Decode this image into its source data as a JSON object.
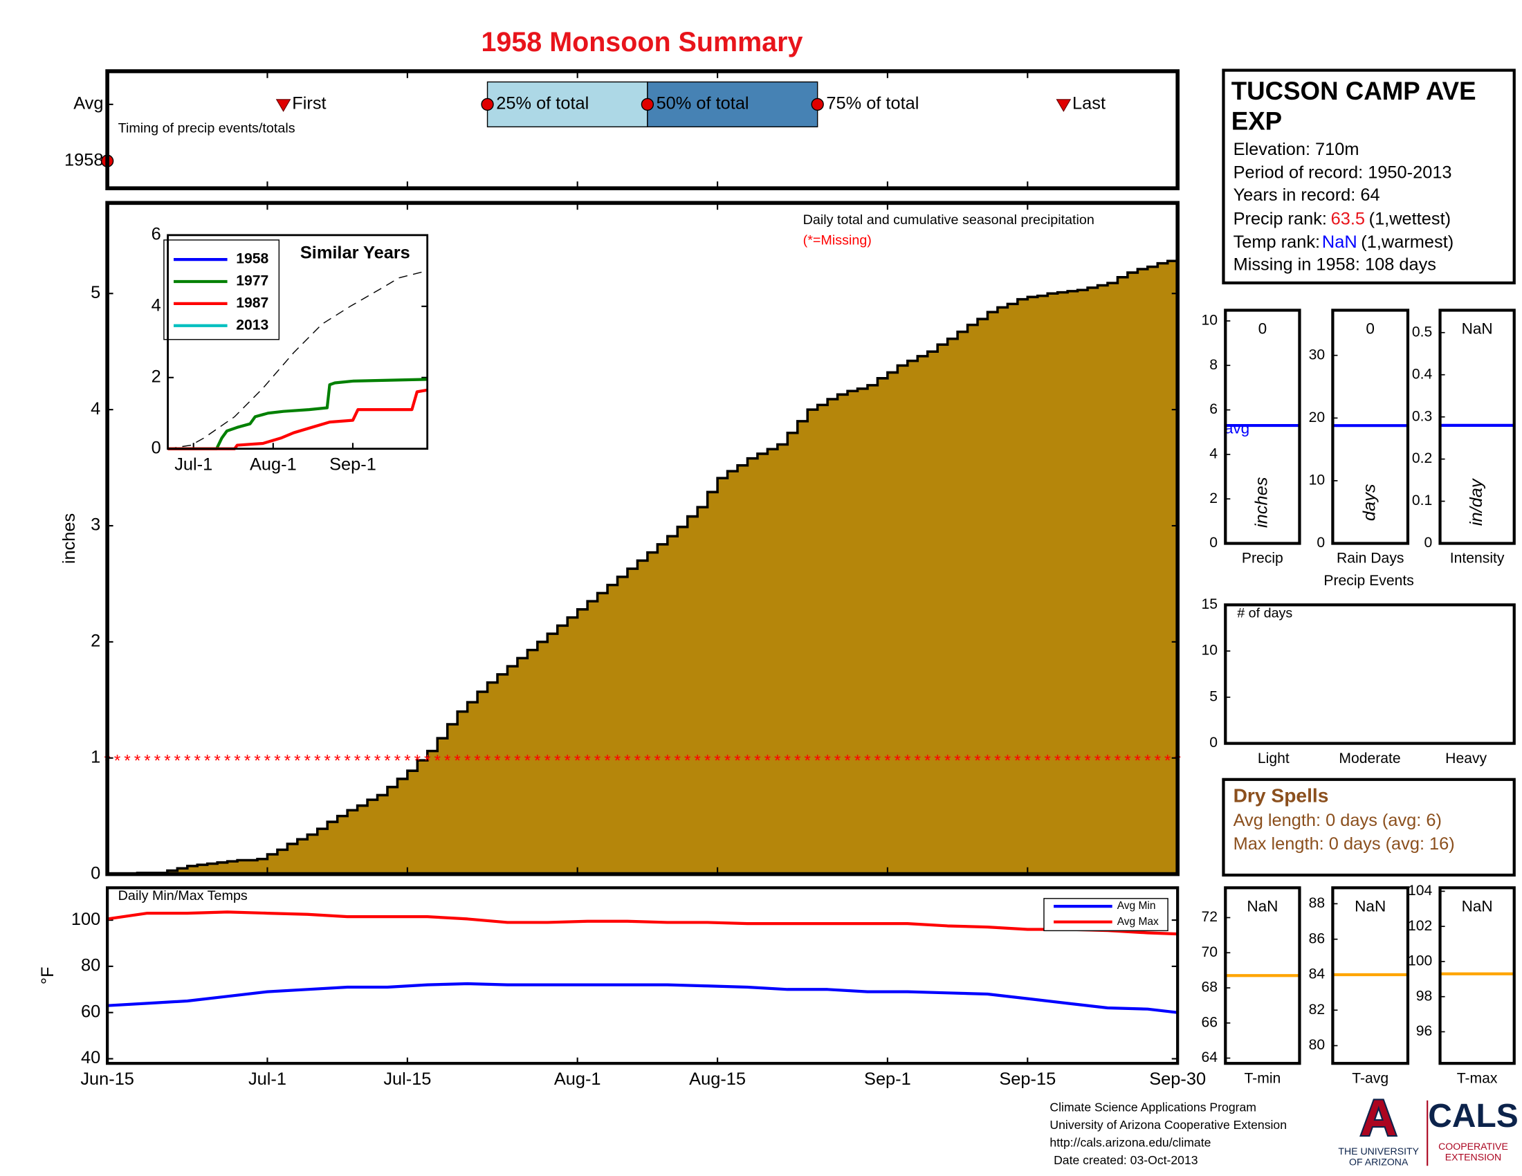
{
  "title": "1958 Monsoon Summary",
  "station": {
    "name": "TUCSON CAMP AVE EXP",
    "lines": [
      "Elevation: 710m",
      "Period of record: 1950-2013",
      "Years in record: 64"
    ],
    "precip_rank_label": "Precip rank:",
    "precip_rank": 63.5,
    "precip_rank_note": "(1,wettest)",
    "temp_rank_label": "Temp rank:",
    "temp_rank": "NaN",
    "temp_rank_note": "(1,warmest)",
    "missing": "Missing in 1958: 108 days"
  },
  "dry_spells": {
    "title": "Dry Spells",
    "lines": [
      "Avg length: 0 days (avg: 6)",
      "Max length: 0 days (avg: 16)"
    ]
  },
  "panel_captions": {
    "precip_events": "Precip Events"
  },
  "footer": {
    "lines": [
      "Climate Science Applications Program",
      "University of Arizona Cooperative Extension",
      "http://cals.arizona.edu/climate",
      "Date created: 03-Oct-2013"
    ]
  },
  "logos": {
    "university": "A",
    "university_name": [
      "THE UNIVERSITY",
      "OF ARIZONA"
    ],
    "cals": "CALS",
    "cals_sub": [
      "COOPERATIVE",
      "EXTENSION"
    ]
  },
  "chart_data": [
    {
      "type": "timing",
      "subtitle": "Timing of precip events/totals",
      "rows": [
        "Avg",
        "1958"
      ],
      "xlim": [
        0,
        107
      ],
      "markers": [
        {
          "name": "First",
          "x": 17.6,
          "shape": "triangle"
        },
        {
          "name": "25% of total",
          "x": 38,
          "shape": "circle"
        },
        {
          "name": "50% of total",
          "x": 54,
          "shape": "circle"
        },
        {
          "name": "75% of total",
          "x": 71,
          "shape": "circle"
        },
        {
          "name": "Last",
          "x": 95.6,
          "shape": "triangle"
        }
      ],
      "box_colors": [
        "#add8e6",
        "#4682b4"
      ],
      "year_marker": 0,
      "color": "#e00000"
    },
    {
      "type": "step_area",
      "annotation": "Daily total and cumulative seasonal precipitation",
      "missing_note": "(*=Missing)",
      "ylabel": "inches",
      "values": [
        0,
        0.0,
        0.0,
        0.01,
        0.01,
        0.01,
        0.03,
        0.05,
        0.07,
        0.08,
        0.09,
        0.1,
        0.11,
        0.12,
        0.12,
        0.13,
        0.17,
        0.21,
        0.26,
        0.3,
        0.34,
        0.39,
        0.45,
        0.5,
        0.55,
        0.59,
        0.64,
        0.68,
        0.75,
        0.82,
        0.89,
        0.98,
        1.06,
        1.17,
        1.29,
        1.4,
        1.48,
        1.57,
        1.65,
        1.72,
        1.79,
        1.86,
        1.93,
        2.0,
        2.07,
        2.14,
        2.21,
        2.28,
        2.35,
        2.42,
        2.49,
        2.56,
        2.63,
        2.7,
        2.77,
        2.84,
        2.91,
        2.99,
        3.08,
        3.16,
        3.29,
        3.41,
        3.47,
        3.52,
        3.58,
        3.62,
        3.66,
        3.7,
        3.8,
        3.9,
        4.0,
        4.04,
        4.09,
        4.13,
        4.16,
        4.18,
        4.21,
        4.27,
        4.32,
        4.38,
        4.42,
        4.46,
        4.5,
        4.56,
        4.61,
        4.67,
        4.73,
        4.78,
        4.84,
        4.88,
        4.91,
        4.95,
        4.97,
        4.98,
        5.0,
        5.01,
        5.02,
        5.03,
        5.05,
        5.07,
        5.09,
        5.14,
        5.18,
        5.21,
        5.23,
        5.26,
        5.28,
        5.3
      ],
      "color": "#b5860b",
      "xlim": [
        0,
        107
      ],
      "ylim": [
        0,
        5.78
      ],
      "yticks": [
        0,
        1,
        2,
        3,
        4,
        5
      ],
      "missing": {
        "symbol": "*",
        "y": 1,
        "color": "#ff0000"
      }
    },
    {
      "type": "line",
      "title": "Similar Years",
      "xlim": [
        6,
        107
      ],
      "ylim": [
        0,
        6
      ],
      "yticks": [
        0,
        2,
        4,
        6
      ],
      "xticks": [
        {
          "value": 16,
          "label": "Jul-1"
        },
        {
          "value": 47,
          "label": "Aug-1"
        },
        {
          "value": 78,
          "label": "Sep-1"
        }
      ],
      "series": [
        {
          "name": "1958",
          "color": "#0000ff",
          "x": [],
          "values": []
        },
        {
          "name": "1977",
          "color": "#008000",
          "x": [
            6,
            25,
            27,
            29,
            33,
            38,
            40,
            45,
            51,
            61,
            68,
            69,
            71,
            78,
            107
          ],
          "values": [
            0,
            0,
            0.3,
            0.5,
            0.6,
            0.7,
            0.9,
            1.0,
            1.05,
            1.1,
            1.15,
            1.8,
            1.85,
            1.9,
            1.95
          ]
        },
        {
          "name": "1987",
          "color": "#ff0000",
          "x": [
            6,
            32,
            33,
            43,
            50,
            55,
            62,
            69,
            78,
            80,
            101,
            103,
            107
          ],
          "values": [
            0,
            0,
            0.1,
            0.15,
            0.3,
            0.45,
            0.6,
            0.75,
            0.8,
            1.1,
            1.1,
            1.6,
            1.65
          ]
        },
        {
          "name": "2013",
          "color": "#00bfbf",
          "x": [],
          "values": []
        }
      ],
      "average": {
        "color": "#000000",
        "x": [
          6,
          15,
          20,
          32,
          43,
          55,
          66,
          77,
          89,
          96,
          107
        ],
        "values": [
          0,
          0.1,
          0.3,
          0.9,
          1.7,
          2.7,
          3.5,
          4.0,
          4.5,
          4.8,
          5.0
        ]
      }
    },
    {
      "type": "line",
      "title": "Daily Min/Max Temps",
      "ylabel": "°F",
      "xlim": [
        0,
        107
      ],
      "ylim": [
        38,
        114
      ],
      "yticks": [
        40,
        60,
        80,
        100
      ],
      "xticks": [
        {
          "value": 0,
          "label": "Jun-15"
        },
        {
          "value": 16,
          "label": "Jul-1"
        },
        {
          "value": 30,
          "label": "Jul-15"
        },
        {
          "value": 47,
          "label": "Aug-1"
        },
        {
          "value": 61,
          "label": "Aug-15"
        },
        {
          "value": 78,
          "label": "Sep-1"
        },
        {
          "value": 92,
          "label": "Sep-15"
        },
        {
          "value": 107,
          "label": "Sep-30"
        }
      ],
      "legend": "upper right",
      "series": [
        {
          "name": "Avg Min",
          "color": "#0000ff",
          "x": [
            0,
            4,
            8,
            12,
            16,
            20,
            24,
            28,
            32,
            36,
            40,
            44,
            48,
            52,
            56,
            60,
            64,
            68,
            72,
            76,
            80,
            84,
            88,
            92,
            96,
            100,
            104,
            107
          ],
          "values": [
            63,
            64,
            65,
            67,
            69,
            70,
            71,
            71,
            72,
            72.5,
            72,
            72,
            72,
            72,
            72,
            71.5,
            71,
            70,
            70,
            69,
            69,
            68.5,
            68,
            66,
            64,
            62,
            61.5,
            60
          ]
        },
        {
          "name": "Avg Max",
          "color": "#ff0000",
          "x": [
            0,
            4,
            8,
            12,
            16,
            20,
            24,
            28,
            32,
            36,
            40,
            44,
            48,
            52,
            56,
            60,
            64,
            68,
            72,
            76,
            80,
            84,
            88,
            92,
            96,
            100,
            104,
            107
          ],
          "values": [
            100.5,
            103,
            103,
            103.5,
            103,
            102.5,
            101.5,
            101.5,
            101.5,
            100.5,
            99,
            99,
            99.5,
            99.5,
            99,
            99,
            98.5,
            98.5,
            98.5,
            98.5,
            98.5,
            97.5,
            97,
            96,
            96,
            95.5,
            94.5,
            94
          ]
        }
      ]
    },
    {
      "type": "summary",
      "name": "Precip",
      "unit": "inches",
      "value": 0,
      "avg": 5.3,
      "avg_label": "avg",
      "avg_color": "#0000ff",
      "ylim": [
        0,
        10.48
      ],
      "yticks": [
        0,
        2,
        4,
        6,
        8,
        10
      ]
    },
    {
      "type": "summary",
      "name": "Rain Days",
      "unit": "days",
      "value": 0,
      "avg": 18.8,
      "avg_color": "#0000ff",
      "ylim": [
        0,
        37.2
      ],
      "yticks": [
        0,
        10,
        20,
        30
      ]
    },
    {
      "type": "summary",
      "name": "Intensity",
      "unit": "in/day",
      "value": null,
      "value_label": "NaN",
      "avg": 0.28,
      "avg_color": "#0000ff",
      "ylim": [
        0,
        0.553
      ],
      "yticks": [
        0,
        0.1,
        0.2,
        0.3,
        0.4,
        0.5
      ]
    },
    {
      "type": "bar",
      "ylabel": "# of days",
      "categories": [
        "Light",
        "Moderate",
        "Heavy"
      ],
      "values": [
        0,
        0,
        0
      ],
      "color": "#000000",
      "ylim": [
        0,
        15
      ],
      "yticks": [
        0,
        5,
        10,
        15
      ]
    },
    {
      "type": "summary",
      "name": "T-min",
      "value": null,
      "value_label": "NaN",
      "avg": 68.7,
      "avg_color": "#ffa500",
      "ylim": [
        63.7,
        73.7
      ],
      "yticks": [
        64,
        66,
        68,
        70,
        72
      ]
    },
    {
      "type": "summary",
      "name": "T-avg",
      "value": null,
      "value_label": "NaN",
      "avg": 84.0,
      "avg_color": "#ffa500",
      "ylim": [
        79,
        88.9
      ],
      "yticks": [
        80,
        82,
        84,
        86,
        88
      ]
    },
    {
      "type": "summary",
      "name": "T-max",
      "value": null,
      "value_label": "NaN",
      "avg": 99.3,
      "avg_color": "#ffa500",
      "ylim": [
        94.2,
        104.2
      ],
      "yticks": [
        96,
        98,
        100,
        102,
        104
      ]
    }
  ]
}
